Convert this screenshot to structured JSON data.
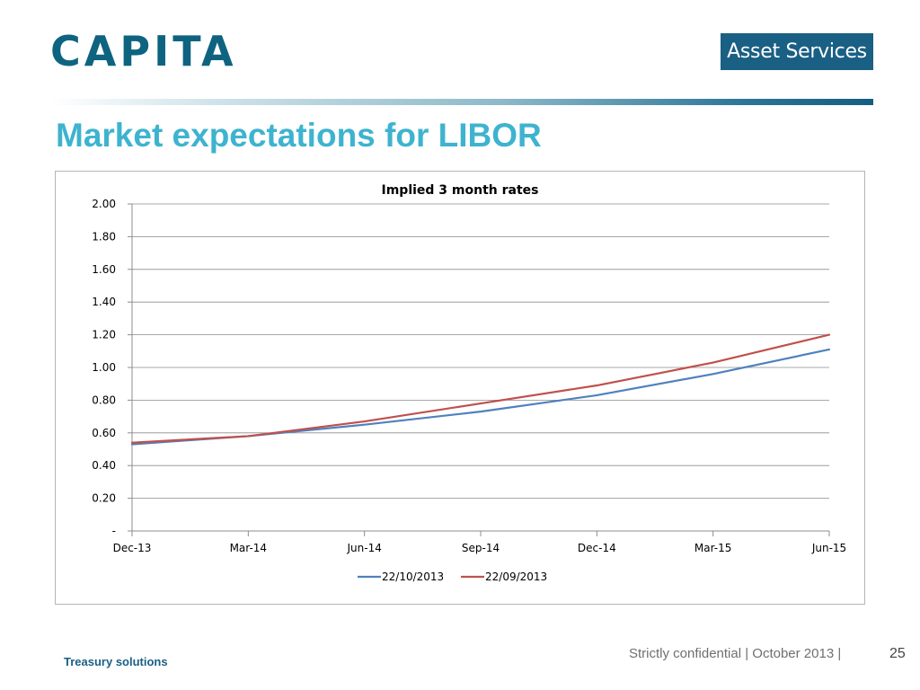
{
  "header": {
    "logo_text": "CAPITA",
    "badge_text": "Asset Services"
  },
  "slide": {
    "title": "Market expectations for LIBOR"
  },
  "footer": {
    "left_text": "Treasury solutions",
    "confidential_text": "Strictly confidential | October 2013 |",
    "page_number": "25"
  },
  "chart_data": {
    "type": "line",
    "title": "Implied 3 month rates",
    "xlabel": "",
    "ylabel": "",
    "categories": [
      "Dec-13",
      "Mar-14",
      "Jun-14",
      "Sep-14",
      "Dec-14",
      "Mar-15",
      "Jun-15"
    ],
    "y_ticks": [
      "-",
      "0.20",
      "0.40",
      "0.60",
      "0.80",
      "1.00",
      "1.20",
      "1.40",
      "1.60",
      "1.80",
      "2.00"
    ],
    "ylim": [
      0,
      2.0
    ],
    "grid": true,
    "legend_position": "bottom",
    "series": [
      {
        "name": "22/10/2013",
        "color": "#4f81bd",
        "values": [
          0.53,
          0.58,
          0.65,
          0.73,
          0.83,
          0.96,
          1.11
        ]
      },
      {
        "name": "22/09/2013",
        "color": "#c0504d",
        "values": [
          0.54,
          0.58,
          0.67,
          0.78,
          0.89,
          1.03,
          1.2
        ]
      }
    ]
  }
}
